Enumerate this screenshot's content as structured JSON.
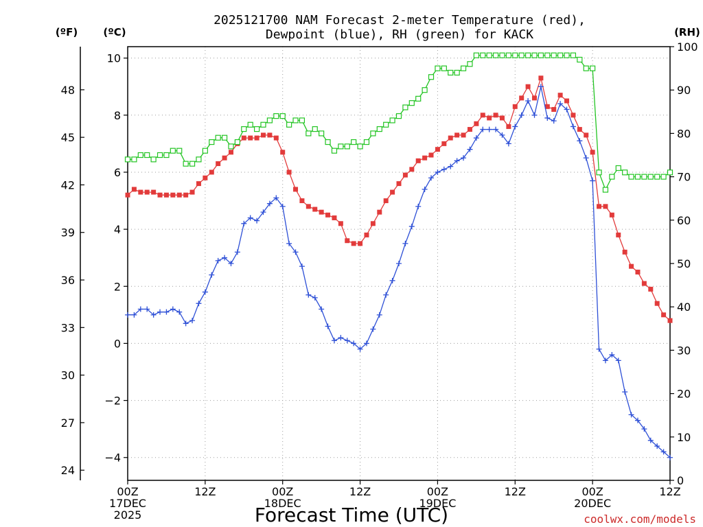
{
  "title_line1": "2025121700 NAM Forecast 2-meter Temperature (red),",
  "title_line2": "Dewpoint (blue), RH (green) for KACK",
  "unit_left_f": "(ºF)",
  "unit_left_c": "(ºC)",
  "unit_right_rh": "(RH)",
  "credit": "coolwx.com/models",
  "colors": {
    "temperature": "#e23b3b",
    "dewpoint": "#2d4fd6",
    "rh": "#22c422",
    "grid": "#9a9a9a"
  },
  "chart_data": {
    "type": "line",
    "title": "2025121700 NAM Forecast 2-meter Temperature (red), Dewpoint (blue), RH (green) for KACK",
    "xlabel": "Forecast Time (UTC)",
    "x_unit": "forecast hour",
    "xlim": [
      0,
      84
    ],
    "x_ticks": [
      {
        "x": 0,
        "labels": [
          "00Z",
          "17DEC",
          "2025"
        ]
      },
      {
        "x": 12,
        "labels": [
          "12Z"
        ]
      },
      {
        "x": 24,
        "labels": [
          "00Z",
          "18DEC"
        ]
      },
      {
        "x": 36,
        "labels": [
          "12Z"
        ]
      },
      {
        "x": 48,
        "labels": [
          "00Z",
          "19DEC"
        ]
      },
      {
        "x": 60,
        "labels": [
          "12Z"
        ]
      },
      {
        "x": 72,
        "labels": [
          "00Z",
          "20DEC"
        ]
      },
      {
        "x": 84,
        "labels": [
          "12Z"
        ]
      }
    ],
    "y_celsius": {
      "label": "(ºC)",
      "lim": [
        -4.8,
        10.4
      ],
      "ticks": [
        10,
        8,
        6,
        4,
        2,
        0,
        -2,
        -4
      ]
    },
    "y_fahrenheit": {
      "label": "(ºF)",
      "ticks": [
        48,
        45,
        42,
        39,
        36,
        33,
        30,
        27,
        24
      ]
    },
    "y_rh": {
      "label": "(RH)",
      "lim": [
        0,
        100
      ],
      "ticks": [
        100,
        90,
        80,
        70,
        60,
        50,
        40,
        30,
        20,
        10,
        0
      ]
    },
    "grid": true,
    "series": [
      {
        "name": "Temperature",
        "axis": "celsius",
        "color": "#e23b3b",
        "marker": "filled-square",
        "x": [
          0,
          1,
          2,
          3,
          4,
          5,
          6,
          7,
          8,
          9,
          10,
          11,
          12,
          13,
          14,
          15,
          16,
          17,
          18,
          19,
          20,
          21,
          22,
          23,
          24,
          25,
          26,
          27,
          28,
          29,
          30,
          31,
          32,
          33,
          34,
          35,
          36,
          37,
          38,
          39,
          40,
          41,
          42,
          43,
          44,
          45,
          46,
          47,
          48,
          49,
          50,
          51,
          52,
          53,
          54,
          55,
          56,
          57,
          58,
          59,
          60,
          61,
          62,
          63,
          64,
          65,
          66,
          67,
          68,
          69,
          70,
          71,
          72,
          73,
          74,
          75,
          76,
          77,
          78,
          79,
          80,
          81,
          82,
          83,
          84
        ],
        "values": [
          5.2,
          5.4,
          5.3,
          5.3,
          5.3,
          5.2,
          5.2,
          5.2,
          5.2,
          5.2,
          5.3,
          5.6,
          5.8,
          6.0,
          6.3,
          6.5,
          6.7,
          7.0,
          7.2,
          7.2,
          7.2,
          7.3,
          7.3,
          7.2,
          6.7,
          6.0,
          5.4,
          5.0,
          4.8,
          4.7,
          4.6,
          4.5,
          4.4,
          4.2,
          3.6,
          3.5,
          3.5,
          3.8,
          4.2,
          4.6,
          5.0,
          5.3,
          5.6,
          5.9,
          6.1,
          6.4,
          6.5,
          6.6,
          6.8,
          7.0,
          7.2,
          7.3,
          7.3,
          7.5,
          7.7,
          8.0,
          7.9,
          8.0,
          7.9,
          7.6,
          8.3,
          8.6,
          9.0,
          8.6,
          9.3,
          8.3,
          8.2,
          8.7,
          8.5,
          8.0,
          7.5,
          7.3,
          6.7,
          4.8,
          4.8,
          4.5,
          3.8,
          3.2,
          2.7,
          2.5,
          2.1,
          1.9,
          1.4,
          1.0,
          0.8
        ]
      },
      {
        "name": "Dewpoint",
        "axis": "celsius",
        "color": "#2d4fd6",
        "marker": "plus",
        "x": [
          0,
          1,
          2,
          3,
          4,
          5,
          6,
          7,
          8,
          9,
          10,
          11,
          12,
          13,
          14,
          15,
          16,
          17,
          18,
          19,
          20,
          21,
          22,
          23,
          24,
          25,
          26,
          27,
          28,
          29,
          30,
          31,
          32,
          33,
          34,
          35,
          36,
          37,
          38,
          39,
          40,
          41,
          42,
          43,
          44,
          45,
          46,
          47,
          48,
          49,
          50,
          51,
          52,
          53,
          54,
          55,
          56,
          57,
          58,
          59,
          60,
          61,
          62,
          63,
          64,
          65,
          66,
          67,
          68,
          69,
          70,
          71,
          72,
          73,
          74,
          75,
          76,
          77,
          78,
          79,
          80,
          81,
          82,
          83,
          84
        ],
        "values": [
          1.0,
          1.0,
          1.2,
          1.2,
          1.0,
          1.1,
          1.1,
          1.2,
          1.1,
          0.7,
          0.8,
          1.4,
          1.8,
          2.4,
          2.9,
          3.0,
          2.8,
          3.2,
          4.2,
          4.4,
          4.3,
          4.6,
          4.9,
          5.1,
          4.8,
          3.5,
          3.2,
          2.7,
          1.7,
          1.6,
          1.2,
          0.6,
          0.1,
          0.2,
          0.1,
          0.0,
          -0.2,
          0.0,
          0.5,
          1.0,
          1.7,
          2.2,
          2.8,
          3.5,
          4.1,
          4.8,
          5.4,
          5.8,
          6.0,
          6.1,
          6.2,
          6.4,
          6.5,
          6.8,
          7.2,
          7.5,
          7.5,
          7.5,
          7.3,
          7.0,
          7.6,
          8.0,
          8.5,
          8.0,
          9.0,
          7.9,
          7.8,
          8.4,
          8.2,
          7.6,
          7.1,
          6.5,
          5.7,
          -0.2,
          -0.6,
          -0.4,
          -0.6,
          -1.7,
          -2.5,
          -2.7,
          -3.0,
          -3.4,
          -3.6,
          -3.8,
          -4.0
        ]
      },
      {
        "name": "RH",
        "axis": "rh",
        "color": "#22c422",
        "marker": "open-square",
        "x": [
          0,
          1,
          2,
          3,
          4,
          5,
          6,
          7,
          8,
          9,
          10,
          11,
          12,
          13,
          14,
          15,
          16,
          17,
          18,
          19,
          20,
          21,
          22,
          23,
          24,
          25,
          26,
          27,
          28,
          29,
          30,
          31,
          32,
          33,
          34,
          35,
          36,
          37,
          38,
          39,
          40,
          41,
          42,
          43,
          44,
          45,
          46,
          47,
          48,
          49,
          50,
          51,
          52,
          53,
          54,
          55,
          56,
          57,
          58,
          59,
          60,
          61,
          62,
          63,
          64,
          65,
          66,
          67,
          68,
          69,
          70,
          71,
          72,
          73,
          74,
          75,
          76,
          77,
          78,
          79,
          80,
          81,
          82,
          83,
          84
        ],
        "values": [
          74,
          74,
          75,
          75,
          74,
          75,
          75,
          76,
          76,
          73,
          73,
          74,
          76,
          78,
          79,
          79,
          77,
          78,
          81,
          82,
          81,
          82,
          83,
          84,
          84,
          82,
          83,
          83,
          80,
          81,
          80,
          78,
          76,
          77,
          77,
          78,
          77,
          78,
          80,
          81,
          82,
          83,
          84,
          86,
          87,
          88,
          90,
          93,
          95,
          95,
          94,
          94,
          95,
          96,
          98,
          98,
          98,
          98,
          98,
          98,
          98,
          98,
          98,
          98,
          98,
          98,
          98,
          98,
          98,
          98,
          97,
          95,
          95,
          71,
          67,
          70,
          72,
          71,
          70,
          70,
          70,
          70,
          70,
          70,
          71
        ]
      }
    ]
  }
}
